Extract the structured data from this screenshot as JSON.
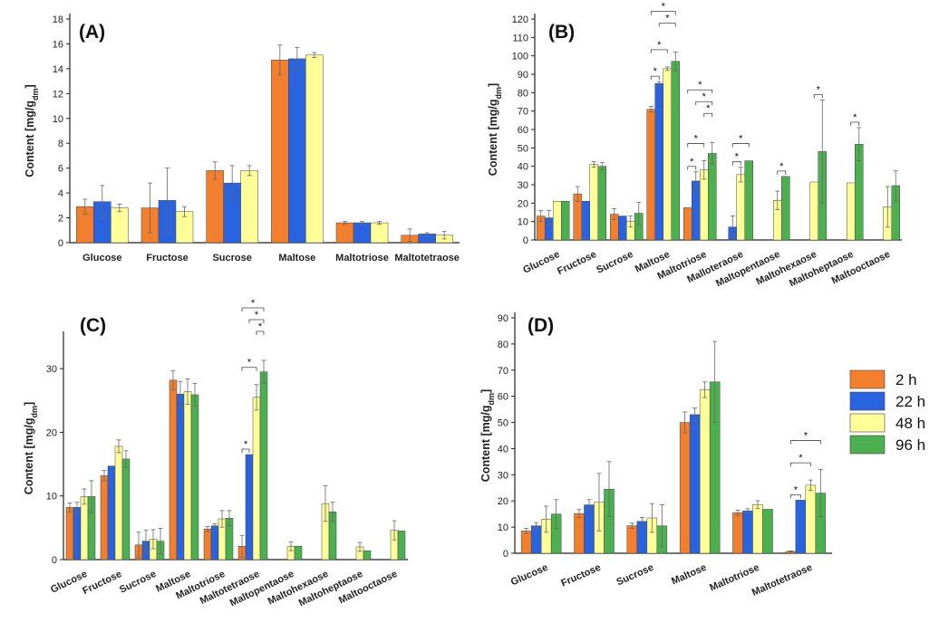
{
  "legend": [
    {
      "name": "2 h",
      "color": "#F27F2D"
    },
    {
      "name": "22 h",
      "color": "#2A63E0"
    },
    {
      "name": "48 h",
      "color": "#FFFF99"
    },
    {
      "name": "96 h",
      "color": "#4CAF50"
    }
  ],
  "chart_data": [
    {
      "panel": "(A)",
      "type": "bar",
      "ylabel": "Content [mg/g_dm]",
      "ylim": [
        0,
        18
      ],
      "yticks": [
        0,
        2,
        4,
        6,
        8,
        10,
        12,
        14,
        16,
        18
      ],
      "categories": [
        "Glucose",
        "Fructose",
        "Sucrose",
        "Maltose",
        "Maltotriose",
        "Maltotetraose"
      ],
      "series": [
        {
          "name": "2 h",
          "values": [
            2.9,
            2.8,
            5.8,
            14.7,
            1.6,
            0.6
          ],
          "errors": [
            0.6,
            2.0,
            0.7,
            1.2,
            0.1,
            0.5
          ]
        },
        {
          "name": "22 h",
          "values": [
            3.3,
            3.4,
            4.8,
            14.8,
            1.6,
            0.7
          ],
          "errors": [
            1.3,
            2.6,
            1.4,
            0.9,
            0.1,
            0.1
          ]
        },
        {
          "name": "48 h",
          "values": [
            2.8,
            2.5,
            5.8,
            15.1,
            1.6,
            0.6
          ],
          "errors": [
            0.3,
            0.4,
            0.4,
            0.2,
            0.1,
            0.3
          ]
        }
      ],
      "significance": []
    },
    {
      "panel": "(B)",
      "type": "bar",
      "ylabel": "Content [mg/g_dm]",
      "ylim": [
        0,
        120
      ],
      "yticks": [
        0,
        10,
        20,
        30,
        40,
        50,
        60,
        70,
        80,
        90,
        100,
        110,
        120
      ],
      "categories": [
        "Glucose",
        "Fructose",
        "Sucrose",
        "Maltose",
        "Maltotriose",
        "Malloteraose",
        "Maltopentaose",
        "Maltohexaose",
        "Maltoheptaose",
        "Maltooctaose"
      ],
      "series": [
        {
          "name": "2 h",
          "values": [
            13,
            25,
            14,
            71,
            17.5,
            null,
            null,
            null,
            null,
            null
          ],
          "errors": [
            3,
            4,
            3,
            1.5,
            0,
            null,
            null,
            null,
            null,
            null
          ]
        },
        {
          "name": "22 h",
          "values": [
            12,
            21,
            13,
            85,
            32,
            7,
            null,
            null,
            null,
            null
          ],
          "errors": [
            4,
            0,
            0,
            1,
            5,
            6,
            null,
            null,
            null,
            null
          ]
        },
        {
          "name": "48 h",
          "values": [
            21,
            41,
            10,
            93,
            38,
            35.5,
            21.5,
            31.5,
            31,
            18
          ],
          "errors": [
            0,
            1.5,
            3,
            1,
            5,
            4,
            5,
            0,
            0,
            11
          ]
        },
        {
          "name": "96 h",
          "values": [
            21,
            40,
            14.5,
            97,
            47,
            43,
            34.5,
            48,
            52,
            29.5
          ],
          "errors": [
            0,
            2,
            6,
            5,
            6,
            0,
            0,
            28,
            9,
            8
          ]
        }
      ],
      "significance": [
        {
          "category": "Maltose",
          "from": "2 h",
          "to": "96 h",
          "label": "*"
        },
        {
          "category": "Maltose",
          "from": "22 h",
          "to": "96 h",
          "label": "*"
        },
        {
          "category": "Maltose",
          "from": "2 h",
          "to": "48 h",
          "label": "*"
        },
        {
          "category": "Maltose",
          "from": "2 h",
          "to": "22 h",
          "label": "*"
        },
        {
          "category": "Maltotriose",
          "from": "2 h",
          "to": "96 h",
          "label": "*"
        },
        {
          "category": "Maltotriose",
          "from": "22 h",
          "to": "96 h",
          "label": "*"
        },
        {
          "category": "Maltotriose",
          "from": "48 h",
          "to": "96 h",
          "label": "*"
        },
        {
          "category": "Maltotriose",
          "from": "2 h",
          "to": "48 h",
          "label": "*"
        },
        {
          "category": "Maltotriose",
          "from": "2 h",
          "to": "22 h",
          "label": "*"
        },
        {
          "category": "Malloteraose",
          "from": "22 h",
          "to": "96 h",
          "label": "*"
        },
        {
          "category": "Malloteraose",
          "from": "22 h",
          "to": "48 h",
          "label": "*"
        },
        {
          "category": "Maltopentaose",
          "from": "48 h",
          "to": "96 h",
          "label": "*"
        },
        {
          "category": "Maltohexaose",
          "from": "48 h",
          "to": "96 h",
          "label": "*"
        },
        {
          "category": "Maltoheptaose",
          "from": "48 h",
          "to": "96 h",
          "label": "*"
        }
      ]
    },
    {
      "panel": "(C)",
      "type": "bar",
      "ylabel": "Content [mg/g_dm]",
      "ylim": [
        0,
        35
      ],
      "yticks": [
        0,
        10,
        20,
        30
      ],
      "categories": [
        "Glucose",
        "Fructose",
        "Sucrose",
        "Maltose",
        "Maltotriose",
        "Maltotetraose",
        "Maltopentaose",
        "Maltohexaose",
        "Maltoheptaose",
        "Maltooctaose"
      ],
      "series": [
        {
          "name": "2 h",
          "values": [
            8.2,
            13.2,
            2.3,
            28.2,
            4.8,
            2.1,
            null,
            null,
            null,
            null
          ],
          "errors": [
            0.7,
            0.8,
            2,
            1.5,
            0.4,
            1.7,
            null,
            null,
            null,
            null
          ]
        },
        {
          "name": "22 h",
          "values": [
            8.2,
            14.7,
            2.9,
            26,
            5.3,
            16.5,
            null,
            null,
            null,
            null
          ],
          "errors": [
            0.8,
            0,
            1.7,
            2,
            0.3,
            0,
            null,
            null,
            null,
            null
          ]
        },
        {
          "name": "48 h",
          "values": [
            9.9,
            17.8,
            3.2,
            26.4,
            6.4,
            25.5,
            2.1,
            8.8,
            2,
            4.6
          ],
          "errors": [
            1.2,
            1,
            1.5,
            2,
            1.3,
            2,
            0.7,
            2.8,
            0.7,
            1.5
          ]
        },
        {
          "name": "96 h",
          "values": [
            9.9,
            15.8,
            2.9,
            25.9,
            6.5,
            29.5,
            2.1,
            7.5,
            1.4,
            4.5
          ],
          "errors": [
            2.5,
            1.3,
            2,
            1.8,
            1.2,
            1.8,
            0,
            1.5,
            0,
            0
          ]
        }
      ],
      "significance": [
        {
          "category": "Maltotetraose",
          "from": "2 h",
          "to": "96 h",
          "label": "*"
        },
        {
          "category": "Maltotetraose",
          "from": "22 h",
          "to": "96 h",
          "label": "*"
        },
        {
          "category": "Maltotetraose",
          "from": "48 h",
          "to": "96 h",
          "label": "*"
        },
        {
          "category": "Maltotetraose",
          "from": "2 h",
          "to": "48 h",
          "label": "*"
        },
        {
          "category": "Maltotetraose",
          "from": "2 h",
          "to": "22 h",
          "label": "*"
        }
      ]
    },
    {
      "panel": "(D)",
      "type": "bar",
      "ylabel": "Content [mg/g_dm]",
      "ylim": [
        0,
        90
      ],
      "yticks": [
        0,
        10,
        20,
        30,
        40,
        50,
        60,
        70,
        80,
        90
      ],
      "categories": [
        "Glucose",
        "Fructose",
        "Sucrose",
        "Maltose",
        "Maltotriose",
        "Maltotetraose"
      ],
      "series": [
        {
          "name": "2 h",
          "values": [
            8.5,
            15.2,
            10.5,
            50,
            15.5,
            0.7
          ],
          "errors": [
            1,
            1.5,
            1,
            4,
            1,
            0.2
          ]
        },
        {
          "name": "22 h",
          "values": [
            10.5,
            18.5,
            12.2,
            53,
            16.2,
            20.3
          ],
          "errors": [
            1.2,
            2,
            1.5,
            2.5,
            0.8,
            0
          ]
        },
        {
          "name": "48 h",
          "values": [
            13,
            19.5,
            13.5,
            62.5,
            18.6,
            26
          ],
          "errors": [
            5,
            11,
            5.5,
            3,
            1.5,
            2
          ]
        },
        {
          "name": "96 h",
          "values": [
            15,
            24.5,
            10.5,
            65.5,
            16.8,
            23
          ],
          "errors": [
            5.5,
            10.5,
            8,
            15.5,
            0,
            9
          ]
        }
      ],
      "significance": [
        {
          "category": "Maltotetraose",
          "from": "2 h",
          "to": "96 h",
          "label": "*"
        },
        {
          "category": "Maltotetraose",
          "from": "2 h",
          "to": "48 h",
          "label": "*"
        },
        {
          "category": "Maltotetraose",
          "from": "2 h",
          "to": "22 h",
          "label": "*"
        }
      ]
    }
  ]
}
